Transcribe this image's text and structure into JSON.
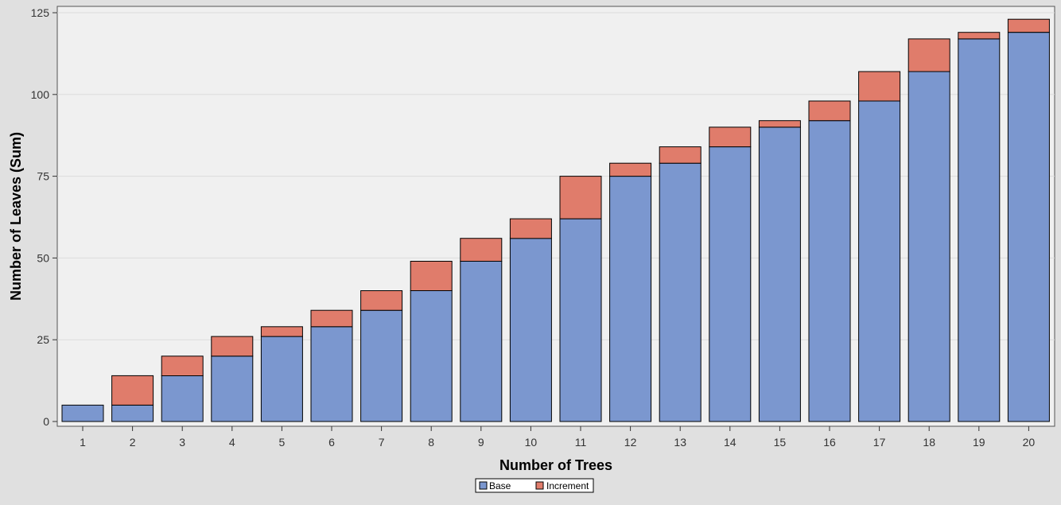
{
  "chart_data": {
    "type": "bar",
    "stacked": true,
    "title": "",
    "xlabel": "Number of Trees",
    "ylabel": "Number of Leaves (Sum)",
    "categories": [
      "1",
      "2",
      "3",
      "4",
      "5",
      "6",
      "7",
      "8",
      "9",
      "10",
      "11",
      "12",
      "13",
      "14",
      "15",
      "16",
      "17",
      "18",
      "19",
      "20"
    ],
    "series": [
      {
        "name": "Base",
        "color": "#7b97cf",
        "values": [
          5,
          5,
          14,
          20,
          26,
          29,
          34,
          40,
          49,
          56,
          62,
          75,
          79,
          84,
          90,
          92,
          98,
          107,
          117,
          119
        ]
      },
      {
        "name": "Increment",
        "color": "#e07c6b",
        "values": [
          0,
          9,
          6,
          6,
          3,
          5,
          6,
          9,
          7,
          6,
          13,
          4,
          5,
          6,
          2,
          6,
          9,
          10,
          2,
          4
        ]
      }
    ],
    "ylim": [
      0,
      125
    ],
    "yticks": [
      0,
      25,
      50,
      75,
      100,
      125
    ],
    "grid": true,
    "legend_position": "bottom-center"
  },
  "colors": {
    "page_background": "#e0e0e0",
    "plot_background": "#f0f0f0",
    "gridline": "#dcdcdc",
    "bar_outline": "#000000"
  }
}
